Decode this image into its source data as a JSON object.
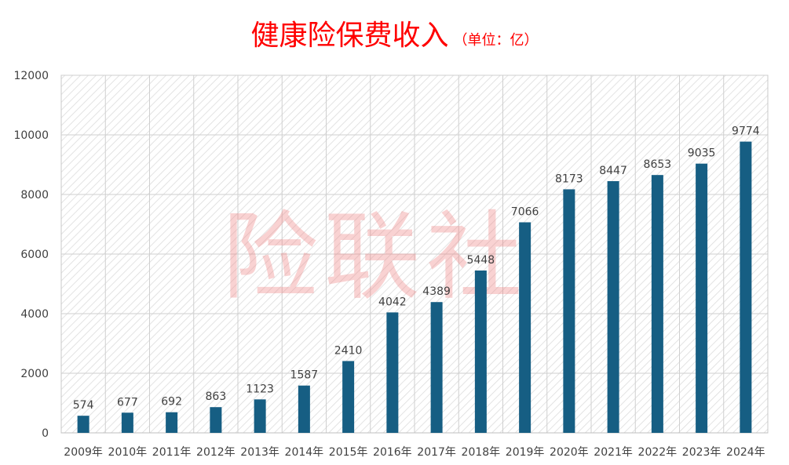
{
  "chart_data": {
    "type": "bar",
    "title": "健康险保费收入",
    "subtitle": "（单位：亿）",
    "xlabel": "",
    "ylabel": "",
    "ylim": [
      0,
      12000
    ],
    "yticks": [
      0,
      2000,
      4000,
      6000,
      8000,
      10000,
      12000
    ],
    "grid": true,
    "legend": "none",
    "bar_color": "#165E83",
    "categories": [
      "2009年",
      "2010年",
      "2011年",
      "2012年",
      "2013年",
      "2014年",
      "2015年",
      "2016年",
      "2017年",
      "2018年",
      "2019年",
      "2020年",
      "2021年",
      "2022年",
      "2023年",
      "2024年"
    ],
    "values": [
      574,
      677,
      692,
      863,
      1123,
      1587,
      2410,
      4042,
      4389,
      5448,
      7066,
      8173,
      8447,
      8653,
      9035,
      9774
    ],
    "watermark": "险联社"
  }
}
